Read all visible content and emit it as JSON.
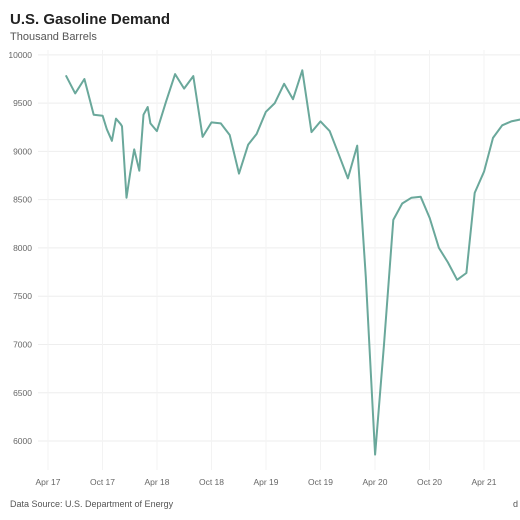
{
  "chart_data": {
    "type": "line",
    "title": "U.S. Gasoline Demand",
    "subtitle": "Thousand Barrels",
    "xlabel": "",
    "ylabel": "",
    "ylim": [
      5700,
      10050
    ],
    "yticks": [
      6000,
      6500,
      7000,
      7500,
      8000,
      8500,
      9000,
      9500,
      10000
    ],
    "xticks": [
      "Apr 17",
      "Oct 17",
      "Apr 18",
      "Oct 18",
      "Apr 19",
      "Oct 19",
      "Apr 20",
      "Oct 20",
      "Apr 21"
    ],
    "grid": true,
    "line_color": "#6aa89b",
    "series": [
      {
        "x": [
          "2017-06-01",
          "2017-07-01",
          "2017-08-01",
          "2017-09-01",
          "2017-10-01",
          "2017-10-15",
          "2017-11-01",
          "2017-11-15",
          "2017-12-01",
          "2017-12-05",
          "2017-12-20",
          "2018-01-01",
          "2018-01-15",
          "2018-02-01",
          "2018-02-15",
          "2018-03-01",
          "2018-03-10",
          "2018-04-01",
          "2018-05-01",
          "2018-06-01",
          "2018-07-01",
          "2018-08-01",
          "2018-09-01",
          "2018-10-01",
          "2018-11-01",
          "2018-12-01",
          "2019-01-01",
          "2019-02-01",
          "2019-03-01",
          "2019-04-01",
          "2019-05-01",
          "2019-06-01",
          "2019-07-01",
          "2019-08-01",
          "2019-09-01",
          "2019-10-01",
          "2019-11-01",
          "2019-12-01",
          "2020-01-01",
          "2020-02-01",
          "2020-03-01",
          "2020-04-01",
          "2020-05-01",
          "2020-06-01",
          "2020-07-01",
          "2020-08-01",
          "2020-09-01",
          "2020-10-01",
          "2020-11-01",
          "2020-12-01",
          "2021-01-01",
          "2021-02-01",
          "2021-03-01",
          "2021-04-01",
          "2021-05-01",
          "2021-06-01",
          "2021-07-01",
          "2021-08-01"
        ],
        "values": [
          9780,
          9600,
          9750,
          9380,
          9370,
          9230,
          9110,
          9340,
          9280,
          9260,
          8520,
          8770,
          9020,
          8800,
          9380,
          9460,
          9290,
          9210,
          9510,
          9800,
          9650,
          9780,
          9150,
          9300,
          9290,
          9170,
          8770,
          9070,
          9180,
          9410,
          9500,
          9700,
          9540,
          9840,
          9200,
          9310,
          9210,
          8970,
          8720,
          9060,
          7700,
          5860,
          7000,
          8290,
          8460,
          8520,
          8530,
          8310,
          8000,
          7850,
          7670,
          7740,
          8570,
          8790,
          9140,
          9270,
          9310,
          9330
        ]
      }
    ]
  },
  "footer": {
    "source": "Data Source: U.S. Department of Energy",
    "corner": "d"
  }
}
